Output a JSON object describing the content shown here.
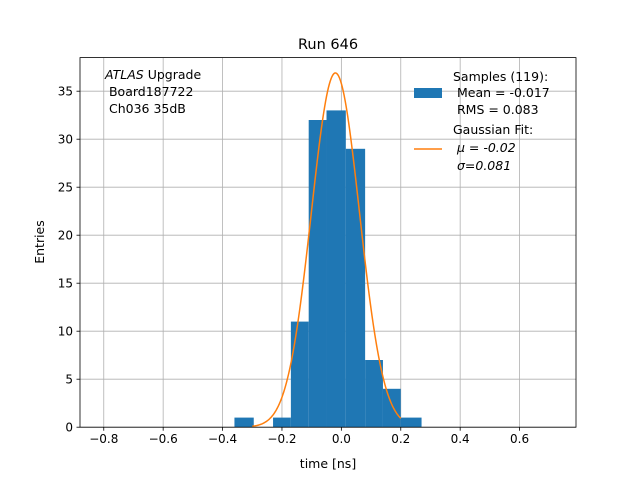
{
  "chart_data": {
    "type": "bar",
    "title": "Run 646",
    "xlabel": "time [ns]",
    "ylabel": "Entries",
    "xlim": [
      -0.88,
      0.79
    ],
    "ylim": [
      0,
      38.5
    ],
    "xticks": [
      -0.8,
      -0.6,
      -0.4,
      -0.2,
      0.0,
      0.2,
      0.4,
      0.6
    ],
    "xtick_labels": [
      "−0.8",
      "−0.6",
      "−0.4",
      "−0.2",
      "0.0",
      "0.2",
      "0.4",
      "0.6"
    ],
    "yticks": [
      0,
      5,
      10,
      15,
      20,
      25,
      30,
      35
    ],
    "grid": true,
    "legend_position": "top-right",
    "colors": {
      "histogram": "#1f77b4",
      "fit": "#ff7f0e"
    },
    "annotation": {
      "italic": "ATLAS",
      "line1_rest": " Upgrade",
      "line2": " Board187722",
      "line3": " Ch036 35dB"
    },
    "histogram": {
      "name_lines": [
        "Samples (119):",
        " Mean = -0.017",
        " RMS = 0.083"
      ],
      "bins": [
        {
          "x0": -0.36,
          "x1": -0.295,
          "count": 1
        },
        {
          "x0": -0.23,
          "x1": -0.17,
          "count": 1
        },
        {
          "x0": -0.17,
          "x1": -0.11,
          "count": 11
        },
        {
          "x0": -0.11,
          "x1": -0.05,
          "count": 32
        },
        {
          "x0": -0.05,
          "x1": 0.015,
          "count": 33
        },
        {
          "x0": 0.015,
          "x1": 0.08,
          "count": 29
        },
        {
          "x0": 0.08,
          "x1": 0.14,
          "count": 7
        },
        {
          "x0": 0.14,
          "x1": 0.2,
          "count": 4
        },
        {
          "x0": 0.2,
          "x1": 0.27,
          "count": 1
        }
      ]
    },
    "fit": {
      "name_lines": [
        "Gaussian Fit:",
        " μ = -0.02",
        " σ=0.081"
      ],
      "mu": -0.02,
      "sigma": 0.081,
      "amplitude": 36.9,
      "x_range": [
        -0.3,
        0.2
      ]
    }
  }
}
